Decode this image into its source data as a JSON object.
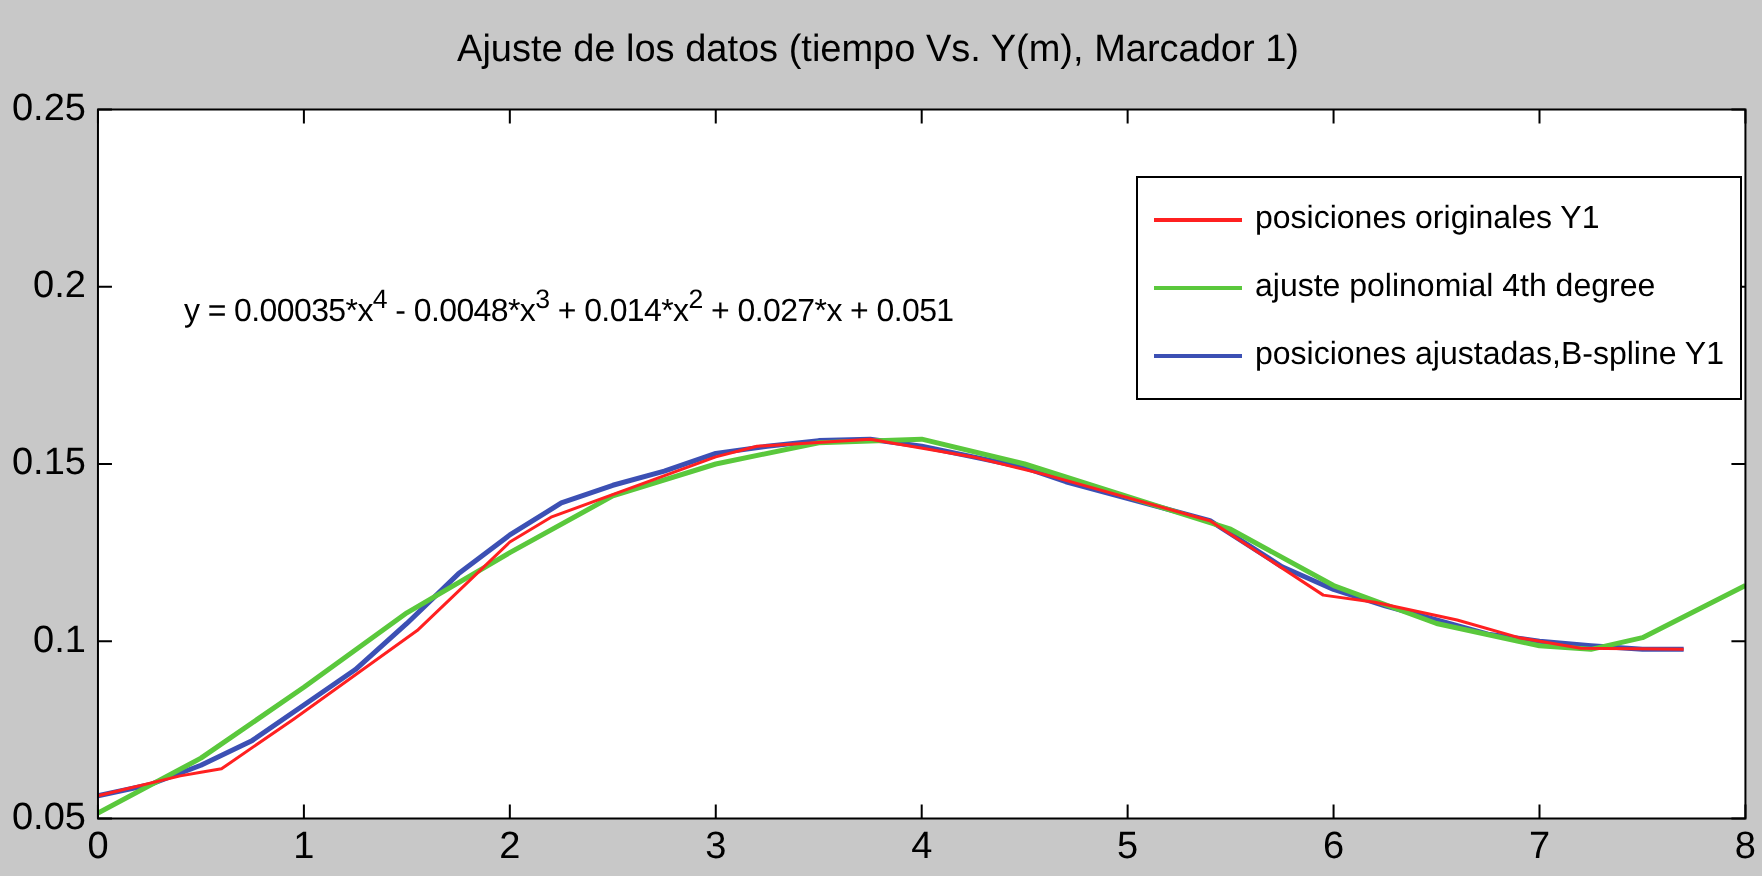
{
  "chart_data": {
    "type": "line",
    "title": "Ajuste de los datos (tiempo Vs. Y(m), Marcador 1)",
    "xlim": [
      0,
      8
    ],
    "xticks": [
      0,
      1,
      2,
      3,
      4,
      5,
      6,
      7,
      8
    ],
    "ylim": [
      0.05,
      0.25
    ],
    "yticks": [
      0.05,
      {
        "value": 0.1,
        "label": "0.1"
      },
      0.15,
      {
        "value": 0.2,
        "label": "0.2"
      },
      0.25
    ],
    "grid": false,
    "legend": "top right",
    "marker": "none",
    "line_style": "solid",
    "annotations": [
      "y = 0.00035*x$^{4}$ - 0.0048*x$^{3}$ + 0.014*x$^{2}$ + 0.027*x + 0.051"
    ],
    "series": [
      {
        "name": "posiciones originales Y1",
        "color": "#ff2020",
        "x": [
          0,
          0.4,
          0.5,
          0.6,
          0.95,
          1.55,
          2.0,
          2.2,
          3.0,
          3.2,
          3.75,
          4.25,
          4.6,
          5.4,
          5.95,
          6.2,
          6.6,
          6.9,
          7.2,
          7.7
        ],
        "values": [
          0.0564,
          0.062,
          0.063,
          0.064,
          0.078,
          0.103,
          0.128,
          0.135,
          0.152,
          0.155,
          0.157,
          0.152,
          0.147,
          0.134,
          0.113,
          0.111,
          0.106,
          0.101,
          0.098,
          0.0977
        ]
      },
      {
        "name": "ajuste polinomial 4th degree",
        "color": "#5ac83c",
        "x": [
          0,
          0.5,
          1,
          1.5,
          2,
          2.5,
          3,
          3.5,
          4,
          4.5,
          5.5,
          6,
          6.5,
          7,
          7.25,
          7.5,
          8
        ],
        "values": [
          0.0515,
          0.067,
          0.087,
          0.108,
          0.125,
          0.141,
          0.15,
          0.156,
          0.157,
          0.15,
          0.1316,
          0.1157,
          0.105,
          0.0987,
          0.0977,
          0.101,
          0.1157
        ]
      },
      {
        "name": "posiciones ajustadas,B-spline Y1",
        "color": "#3c50b4",
        "x": [
          0,
          0.25,
          0.5,
          0.75,
          1,
          1.25,
          1.5,
          1.75,
          2,
          2.25,
          2.5,
          2.75,
          3,
          3.25,
          3.5,
          3.75,
          4,
          4.25,
          4.5,
          4.7,
          5.4,
          5.75,
          6,
          6.25,
          6.5,
          6.75,
          7,
          7.25,
          7.5,
          7.7
        ],
        "values": [
          0.0564,
          0.0595,
          0.065,
          0.072,
          0.082,
          0.092,
          0.105,
          0.119,
          0.13,
          0.139,
          0.144,
          0.148,
          0.153,
          0.155,
          0.1566,
          0.157,
          0.155,
          0.152,
          0.149,
          0.145,
          0.134,
          0.121,
          0.1146,
          0.11,
          0.106,
          0.102,
          0.1,
          0.0987,
          0.0977,
          0.0977
        ]
      }
    ]
  }
}
